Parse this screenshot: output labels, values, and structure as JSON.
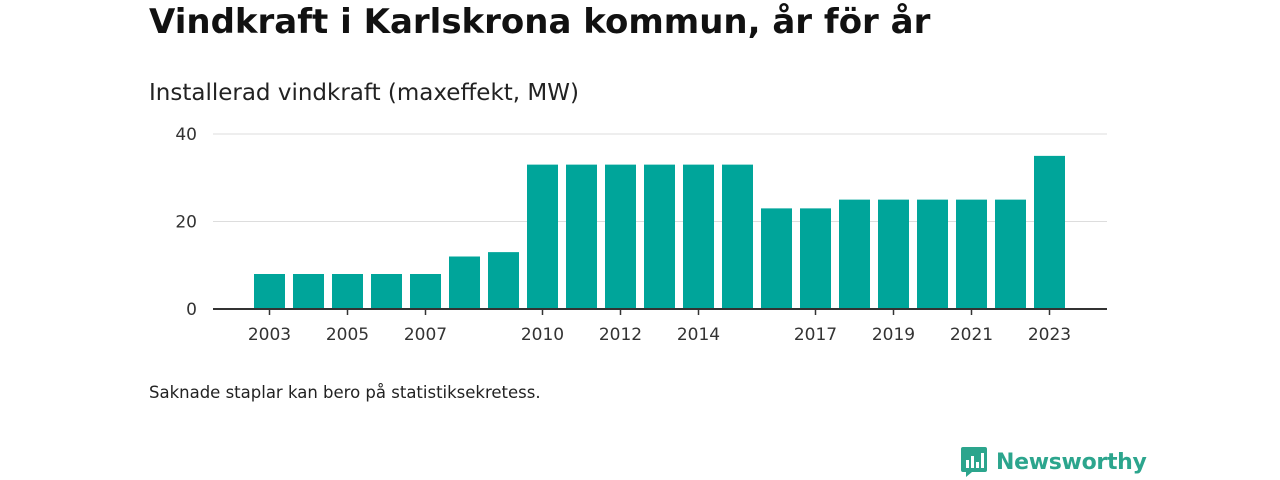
{
  "title": "Vindkraft i Karlskrona kommun, år för år",
  "subtitle": "Installerad vindkraft (maxeffekt, MW)",
  "note": "Saknade staplar kan bero på statistiksekretess.",
  "brand": {
    "name": "Newsworthy",
    "icon": "newsworthy-logo-icon"
  },
  "colors": {
    "bar": "#00a59a",
    "brand": "#2ca58d",
    "grid": "#dddddd",
    "axis": "#333333"
  },
  "chart_data": {
    "type": "bar",
    "title": "Vindkraft i Karlskrona kommun, år för år",
    "subtitle": "Installerad vindkraft (maxeffekt, MW)",
    "xlabel": "",
    "ylabel": "",
    "categories": [
      2003,
      2004,
      2005,
      2006,
      2007,
      2008,
      2009,
      2010,
      2011,
      2012,
      2013,
      2014,
      2015,
      2016,
      2017,
      2018,
      2019,
      2020,
      2021,
      2022,
      2023
    ],
    "values": [
      8,
      8,
      8,
      8,
      8,
      12,
      13,
      33,
      33,
      33,
      33,
      33,
      33,
      23,
      23,
      25,
      25,
      25,
      25,
      25,
      35
    ],
    "ylim": [
      0,
      40
    ],
    "y_ticks": [
      0,
      20,
      40
    ],
    "x_tick_labels": [
      "2003",
      "2005",
      "2007",
      "2010",
      "2012",
      "2014",
      "2017",
      "2019",
      "2021",
      "2023"
    ],
    "grid": true,
    "legend": "none"
  }
}
